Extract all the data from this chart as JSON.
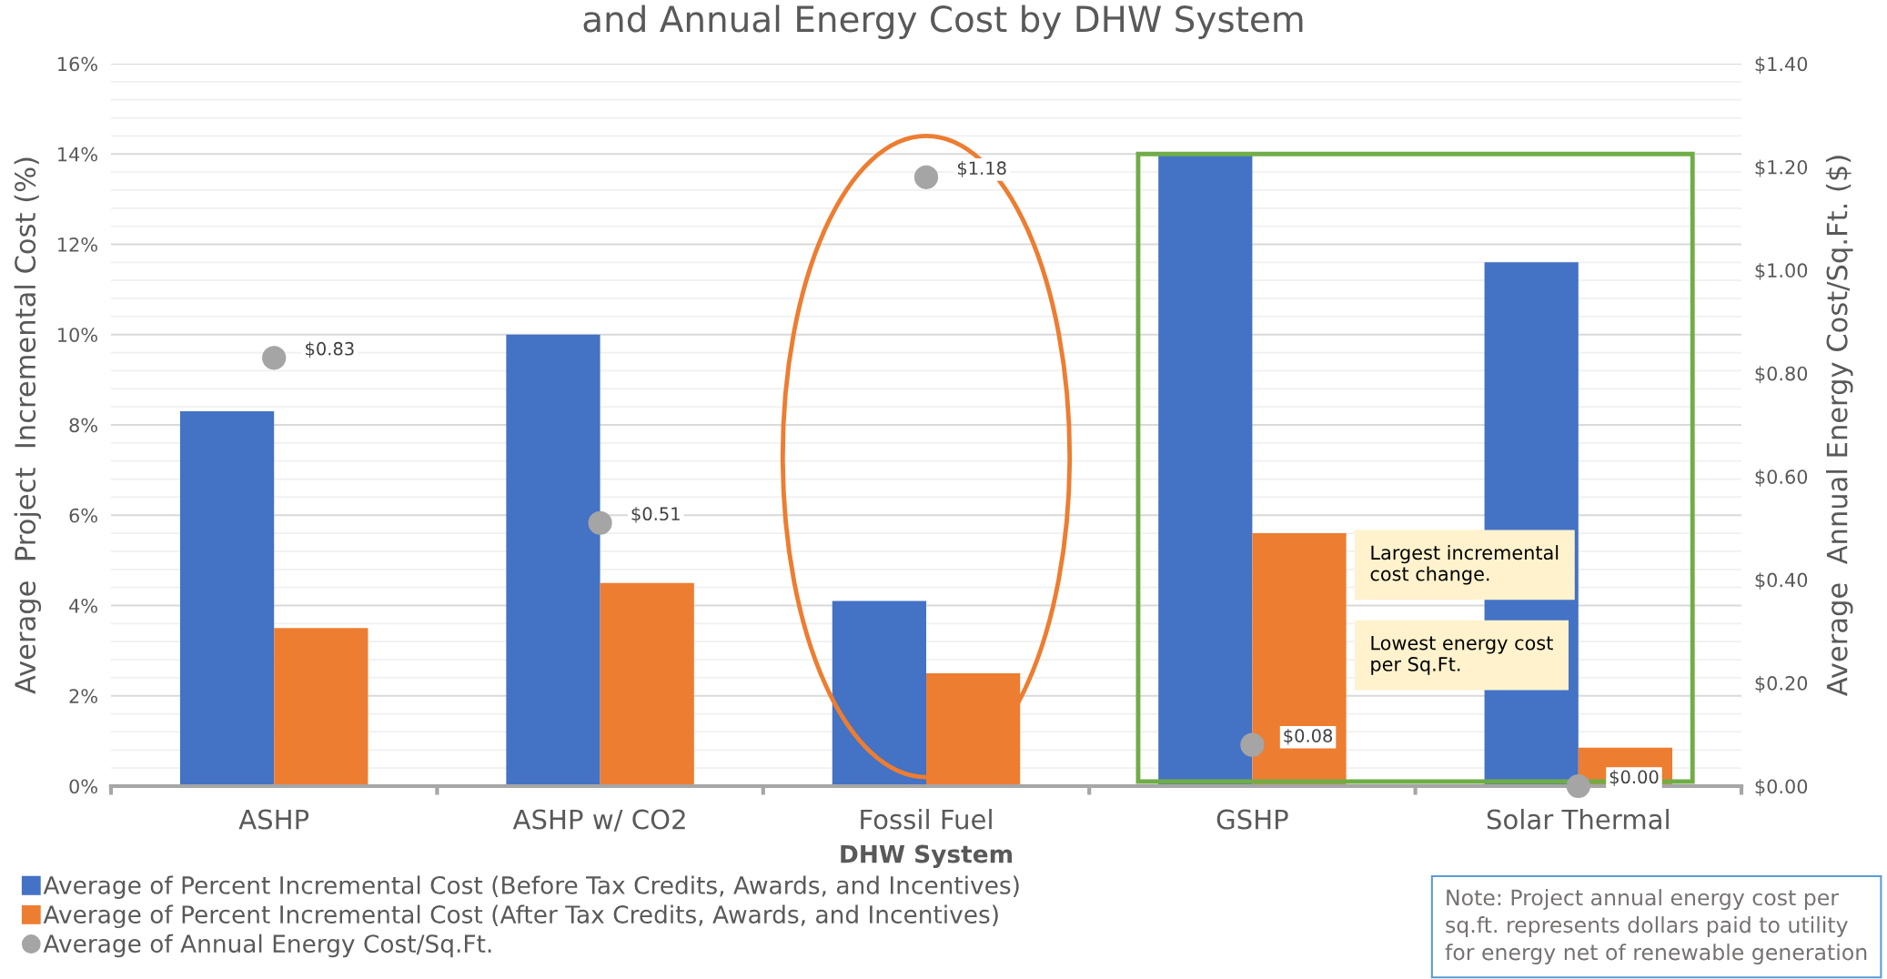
{
  "chart_data": {
    "type": "bar",
    "title": "and Annual Energy Cost by DHW System",
    "xlabel": "DHW System",
    "ylabel": "Average  Project  Incremental Cost (%)",
    "y2label": "Average  Annual Energy Cost/Sq.Ft. ($)",
    "categories": [
      "ASHP",
      "ASHP w/ CO2",
      "Fossil Fuel",
      "GSHP",
      "Solar Thermal"
    ],
    "series": [
      {
        "name": "Average of Percent Incremental Cost (Before Tax Credits, Awards, and Incentives)",
        "color": "#4472c4",
        "values": [
          8.3,
          10.0,
          4.1,
          14.0,
          11.6
        ]
      },
      {
        "name": "Average of Percent Incremental Cost (After Tax Credits, Awards, and Incentives)",
        "color": "#ed7d31",
        "values": [
          3.5,
          4.5,
          2.5,
          5.6,
          0.85
        ]
      },
      {
        "name": "Average of Annual Energy Cost/Sq.Ft.",
        "type": "scatter",
        "axis": "y2",
        "color": "#a5a5a5",
        "marker": "circle",
        "values": [
          0.83,
          0.51,
          1.18,
          0.08,
          0.0
        ],
        "value_labels": [
          "$0.83",
          "$0.51",
          "$1.18",
          "$0.08",
          "$0.00"
        ]
      }
    ],
    "ylim": [
      0,
      16
    ],
    "yticks": [
      {
        "value": 0,
        "label": "0%"
      },
      {
        "value": 2,
        "label": "2%"
      },
      {
        "value": 4,
        "label": "4%"
      },
      {
        "value": 6,
        "label": "6%"
      },
      {
        "value": 8,
        "label": "8%"
      },
      {
        "value": 10,
        "label": "10%"
      },
      {
        "value": 12,
        "label": "12%"
      },
      {
        "value": 14,
        "label": "14%"
      },
      {
        "value": 16,
        "label": "16%"
      }
    ],
    "y2lim": [
      0,
      1.4
    ],
    "y2ticks": [
      {
        "value": 0,
        "label": "$0.00"
      },
      {
        "value": 0.2,
        "label": "$0.20"
      },
      {
        "value": 0.4,
        "label": "$0.40"
      },
      {
        "value": 0.6,
        "label": "$0.60"
      },
      {
        "value": 0.8,
        "label": "$0.80"
      },
      {
        "value": 1.0,
        "label": "$1.00"
      },
      {
        "value": 1.2,
        "label": "$1.20"
      },
      {
        "value": 1.4,
        "label": "$1.40"
      }
    ],
    "grid": "y",
    "legend": "bottom left",
    "annotations": [
      "Largest incremental\ncost change.",
      "Lowest energy cost\nper Sq.Ft.",
      "Note: Project annual energy cost per\nsq.ft. represents dollars paid to utility\nfor energy net of renewable generation"
    ]
  }
}
